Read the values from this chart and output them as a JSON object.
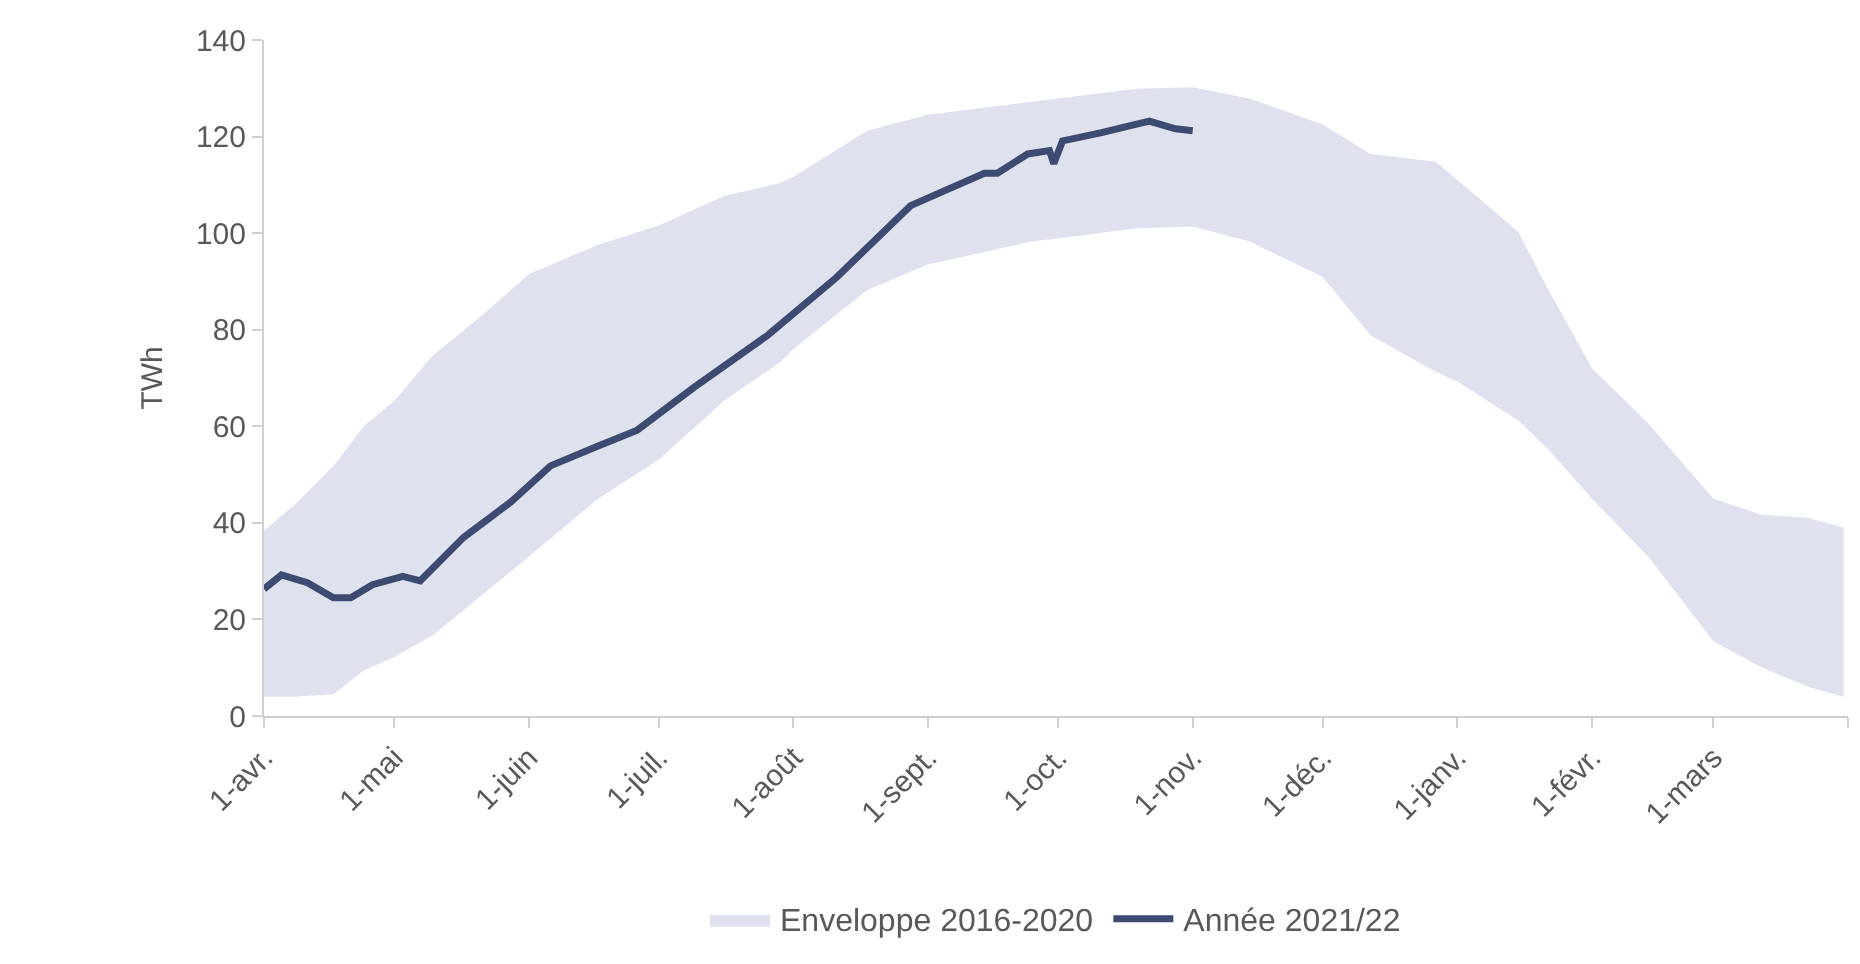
{
  "chart_data": {
    "type": "line",
    "ylabel": "TWh",
    "ylim": [
      0,
      140
    ],
    "yticks": [
      0,
      20,
      40,
      60,
      80,
      100,
      120,
      140
    ],
    "xlim": [
      "2021-04-01",
      "2022-04-01"
    ],
    "xticks": [
      {
        "value": "2021-04-01",
        "label": "1-avr."
      },
      {
        "value": "2021-05-01",
        "label": "1-mai"
      },
      {
        "value": "2021-06-01",
        "label": "1-juin"
      },
      {
        "value": "2021-07-01",
        "label": "1-juil."
      },
      {
        "value": "2021-08-01",
        "label": "1-août"
      },
      {
        "value": "2021-09-01",
        "label": "1-sept."
      },
      {
        "value": "2021-10-01",
        "label": "1-oct."
      },
      {
        "value": "2021-11-01",
        "label": "1-nov."
      },
      {
        "value": "2021-12-01",
        "label": "1-déc."
      },
      {
        "value": "2022-01-01",
        "label": "1-janv."
      },
      {
        "value": "2022-02-01",
        "label": "1-févr."
      },
      {
        "value": "2022-03-01",
        "label": "1-mars"
      },
      {
        "value": "2022-04-01",
        "label": null
      }
    ],
    "grid": false,
    "legend": "bottom",
    "marker": "none",
    "line_style": "solid",
    "series": [
      {
        "name": "Enveloppe 2016-2020",
        "type": "area",
        "color": "#dfe1ee",
        "x": [
          "2021-04-01",
          "2021-04-08",
          "2021-04-17",
          "2021-04-24",
          "2021-05-01",
          "2021-05-10",
          "2021-05-21",
          "2021-06-01",
          "2021-06-17",
          "2021-07-01",
          "2021-07-16",
          "2021-07-29",
          "2021-08-01",
          "2021-08-18",
          "2021-09-01",
          "2021-09-25",
          "2021-10-01",
          "2021-10-19",
          "2021-11-01",
          "2021-11-14",
          "2021-12-01",
          "2021-12-12",
          "2021-12-27",
          "2022-01-01",
          "2022-01-15",
          "2022-01-22",
          "2022-02-01",
          "2022-02-14",
          "2022-03-01",
          "2022-03-12",
          "2022-03-23",
          "2022-03-31"
        ],
        "values": [
          null,
          null,
          null,
          null,
          null,
          null,
          null,
          null,
          null,
          null,
          null,
          null,
          null,
          null,
          null,
          null,
          null,
          null,
          null,
          null,
          null,
          null,
          null,
          null,
          null,
          null,
          null,
          null,
          null,
          null,
          null,
          null
        ],
        "upper": [
          38.4,
          43.7,
          51.8,
          60,
          65.3,
          74.7,
          82.8,
          91.5,
          97.6,
          101.6,
          107.7,
          110.4,
          111.7,
          121.2,
          124.5,
          127.2,
          127.9,
          129.9,
          130.2,
          127.9,
          122.5,
          116.4,
          114.8,
          111,
          100.3,
          88.2,
          72,
          60.6,
          45,
          41.7,
          41,
          39
        ],
        "lower": [
          4,
          4,
          4.5,
          9.4,
          12.2,
          16.8,
          24.9,
          33,
          45,
          53.1,
          65.3,
          73.3,
          76,
          88.2,
          93.5,
          98.3,
          98.9,
          101,
          101.4,
          98.3,
          90.9,
          78.8,
          71.3,
          69.3,
          61.2,
          55.2,
          45,
          33,
          15.5,
          10.1,
          6,
          4
        ]
      },
      {
        "name": "Année 2021/22",
        "type": "line",
        "color": "#3d4a72",
        "x": [
          "2021-04-01",
          "2021-04-05",
          "2021-04-11",
          "2021-04-17",
          "2021-04-21",
          "2021-04-26",
          "2021-05-03",
          "2021-05-07",
          "2021-05-17",
          "2021-05-28",
          "2021-06-06",
          "2021-06-17",
          "2021-06-26",
          "2021-07-09",
          "2021-07-26",
          "2021-08-11",
          "2021-08-28",
          "2021-09-14",
          "2021-09-17",
          "2021-09-24",
          "2021-09-29",
          "2021-09-30",
          "2021-10-02",
          "2021-10-11",
          "2021-10-22",
          "2021-10-28",
          "2021-11-01"
        ],
        "values": [
          26.3,
          29.2,
          27.6,
          24.5,
          24.5,
          27.2,
          28.9,
          28,
          37,
          44.4,
          51.8,
          55.9,
          59.2,
          68,
          78.8,
          90.9,
          105.7,
          112.4,
          112.4,
          116.4,
          117.1,
          114.4,
          119.1,
          120.8,
          123.2,
          121.6,
          121.2
        ]
      }
    ]
  }
}
